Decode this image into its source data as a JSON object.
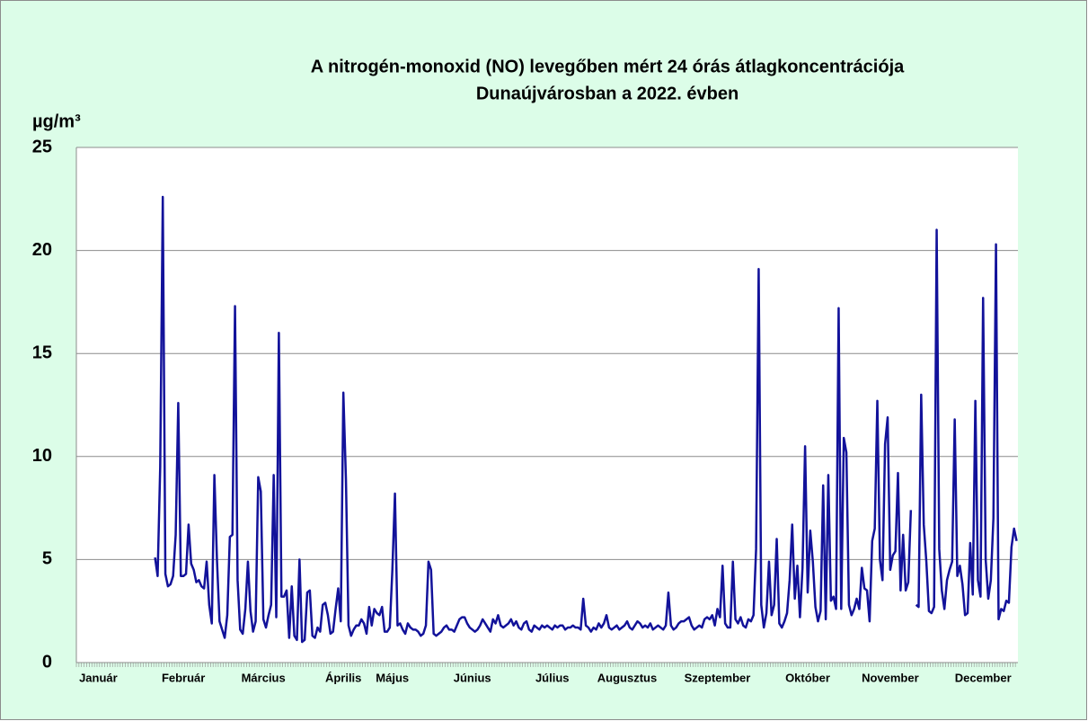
{
  "chart_data": {
    "type": "line",
    "title": [
      "A nitrogén-monoxid (NO) levegőben mért 24 órás átlagkoncentrációja",
      "Dunaújvárosban a 2022. évben"
    ],
    "ylabel": "µg/m³",
    "ylim": [
      0,
      25
    ],
    "yticks": [
      0,
      5,
      10,
      15,
      20,
      25
    ],
    "grid": true,
    "categories": [
      null,
      null,
      null,
      null,
      null,
      null,
      null,
      null,
      "Január",
      null,
      null,
      null,
      null,
      null,
      null,
      null,
      null,
      null,
      null,
      null,
      null,
      null,
      null,
      null,
      null,
      null,
      null,
      null,
      null,
      null,
      null,
      null,
      null,
      null,
      null,
      null,
      null,
      null,
      null,
      null,
      null,
      "Február",
      null,
      null,
      null,
      null,
      null,
      null,
      null,
      null,
      null,
      null,
      null,
      null,
      null,
      null,
      null,
      null,
      null,
      null,
      null,
      null,
      null,
      null,
      null,
      null,
      null,
      null,
      null,
      null,
      null,
      null,
      "Március",
      null,
      null,
      null,
      null,
      null,
      null,
      null,
      null,
      null,
      null,
      null,
      null,
      null,
      null,
      null,
      null,
      null,
      null,
      null,
      null,
      null,
      null,
      null,
      null,
      null,
      null,
      null,
      null,
      null,
      null,
      "Április",
      null,
      null,
      null,
      null,
      null,
      null,
      null,
      null,
      null,
      null,
      null,
      null,
      null,
      null,
      null,
      null,
      null,
      null,
      "Május",
      null,
      null,
      null,
      null,
      null,
      null,
      null,
      null,
      null,
      null,
      null,
      null,
      null,
      null,
      null,
      null,
      null,
      null,
      null,
      null,
      null,
      null,
      null,
      null,
      null,
      null,
      null,
      null,
      null,
      null,
      "Június",
      null,
      null,
      null,
      null,
      null,
      null,
      null,
      null,
      null,
      null,
      null,
      null,
      null,
      null,
      null,
      null,
      null,
      null,
      null,
      null,
      null,
      null,
      null,
      null,
      null,
      null,
      null,
      null,
      null,
      null,
      "Július",
      null,
      null,
      null,
      null,
      null,
      null,
      null,
      null,
      null,
      null,
      null,
      null,
      null,
      null,
      null,
      null,
      null,
      null,
      null,
      null,
      null,
      null,
      null,
      null,
      null,
      null,
      null,
      null,
      "Augusztus",
      null,
      null,
      null,
      null,
      null,
      null,
      null,
      null,
      null,
      null,
      null,
      null,
      null,
      null,
      null,
      null,
      null,
      null,
      null,
      null,
      null,
      null,
      null,
      null,
      null,
      null,
      null,
      null,
      null,
      null,
      null,
      null,
      null,
      null,
      "Szeptember",
      null,
      null,
      null,
      null,
      null,
      null,
      null,
      null,
      null,
      null,
      null,
      null,
      null,
      null,
      null,
      null,
      null,
      null,
      null,
      null,
      null,
      null,
      null,
      null,
      null,
      null,
      null,
      null,
      null,
      null,
      null,
      null,
      null,
      null,
      "Október",
      null,
      null,
      null,
      null,
      null,
      null,
      null,
      null,
      null,
      null,
      null,
      null,
      null,
      null,
      null,
      null,
      null,
      null,
      null,
      null,
      null,
      null,
      null,
      null,
      null,
      null,
      null,
      null,
      null,
      null,
      null,
      "November",
      null,
      null,
      null,
      null,
      null,
      null,
      null,
      null,
      null,
      null,
      null,
      null,
      null,
      null,
      null,
      null,
      null,
      null,
      null,
      null,
      null,
      null,
      null,
      null,
      null,
      null,
      null,
      null,
      null,
      null,
      null,
      null,
      null,
      null,
      null,
      "December",
      null,
      null,
      null,
      null,
      null,
      null,
      null,
      null,
      null,
      null,
      null,
      null,
      null
    ],
    "series": [
      {
        "color": "#12129a",
        "values": [
          null,
          null,
          null,
          null,
          null,
          null,
          null,
          null,
          null,
          null,
          null,
          null,
          null,
          null,
          null,
          null,
          null,
          null,
          null,
          null,
          null,
          null,
          null,
          null,
          null,
          null,
          null,
          null,
          null,
          null,
          5.1,
          4.2,
          9.5,
          22.6,
          4.3,
          3.7,
          3.8,
          4.2,
          6.2,
          12.6,
          4.2,
          4.2,
          4.3,
          6.7,
          4.8,
          4.5,
          3.9,
          4.0,
          3.7,
          3.6,
          4.9,
          2.8,
          1.9,
          9.1,
          5.0,
          2.0,
          1.6,
          1.2,
          2.3,
          6.1,
          6.2,
          17.3,
          4.0,
          1.6,
          1.4,
          2.6,
          4.9,
          2.5,
          1.5,
          2.0,
          9.0,
          8.3,
          2.1,
          1.7,
          2.3,
          2.8,
          9.1,
          2.2,
          16.0,
          3.2,
          3.2,
          3.5,
          1.2,
          3.7,
          1.3,
          1.1,
          5.0,
          1.0,
          1.1,
          3.4,
          3.5,
          1.3,
          1.2,
          1.7,
          1.5,
          2.8,
          2.9,
          2.3,
          1.4,
          1.5,
          2.6,
          3.6,
          2.0,
          13.1,
          8.9,
          1.8,
          1.3,
          1.6,
          1.8,
          1.8,
          2.1,
          1.9,
          1.4,
          2.7,
          1.8,
          2.6,
          2.4,
          2.3,
          2.7,
          1.5,
          1.5,
          1.7,
          4.5,
          8.2,
          1.8,
          1.9,
          1.6,
          1.4,
          1.9,
          1.7,
          1.6,
          1.6,
          1.5,
          1.3,
          1.4,
          1.8,
          4.9,
          4.5,
          1.4,
          1.3,
          1.4,
          1.5,
          1.7,
          1.8,
          1.6,
          1.6,
          1.5,
          1.8,
          2.1,
          2.2,
          2.2,
          1.9,
          1.7,
          1.6,
          1.5,
          1.6,
          1.8,
          2.1,
          1.9,
          1.7,
          1.5,
          2.1,
          1.9,
          2.3,
          1.8,
          1.7,
          1.8,
          1.9,
          2.1,
          1.8,
          2.0,
          1.7,
          1.6,
          1.9,
          2.0,
          1.6,
          1.5,
          1.8,
          1.7,
          1.6,
          1.8,
          1.7,
          1.8,
          1.7,
          1.6,
          1.8,
          1.7,
          1.8,
          1.8,
          1.6,
          1.7,
          1.7,
          1.8,
          1.7,
          1.7,
          1.6,
          3.1,
          1.8,
          1.7,
          1.5,
          1.7,
          1.6,
          1.9,
          1.7,
          1.9,
          2.3,
          1.7,
          1.6,
          1.7,
          1.8,
          1.6,
          1.7,
          1.8,
          2.0,
          1.7,
          1.6,
          1.8,
          2.0,
          1.9,
          1.7,
          1.8,
          1.7,
          1.9,
          1.6,
          1.7,
          1.8,
          1.7,
          1.6,
          1.8,
          3.4,
          1.8,
          1.6,
          1.7,
          1.9,
          2.0,
          2.0,
          2.1,
          2.2,
          1.8,
          1.6,
          1.7,
          1.8,
          1.7,
          2.1,
          2.2,
          2.1,
          2.3,
          1.8,
          2.6,
          2.2,
          4.7,
          1.9,
          1.7,
          1.7,
          4.9,
          2.1,
          1.9,
          2.2,
          1.8,
          1.7,
          2.1,
          2.0,
          2.3,
          5.5,
          19.1,
          2.8,
          1.7,
          2.4,
          4.9,
          2.3,
          2.8,
          6.0,
          1.9,
          1.7,
          2.0,
          2.4,
          4.0,
          6.7,
          3.1,
          4.7,
          2.2,
          4.6,
          10.5,
          3.4,
          6.4,
          4.9,
          2.7,
          2.0,
          2.5,
          8.6,
          2.1,
          9.1,
          3.0,
          3.2,
          2.6,
          17.2,
          2.6,
          10.9,
          10.2,
          2.8,
          2.3,
          2.6,
          3.1,
          2.6,
          4.6,
          3.6,
          3.5,
          2.0,
          5.9,
          6.5,
          12.7,
          5.0,
          4.0,
          10.6,
          11.9,
          4.5,
          5.2,
          5.4,
          9.2,
          3.5,
          6.2,
          3.5,
          3.9,
          7.4,
          null,
          2.8,
          2.7,
          13.0,
          6.7,
          4.9,
          2.5,
          2.4,
          2.7,
          21.0,
          5.5,
          3.5,
          2.6,
          4.0,
          4.5,
          4.9,
          11.8,
          4.2,
          4.7,
          3.8,
          2.3,
          2.4,
          5.8,
          3.3,
          12.7,
          4.0,
          3.2,
          17.7,
          5.0,
          3.1,
          4.0,
          7.0,
          20.3,
          2.1,
          2.6,
          2.5,
          3.0,
          2.9,
          5.6,
          6.5,
          5.9
        ]
      }
    ]
  }
}
